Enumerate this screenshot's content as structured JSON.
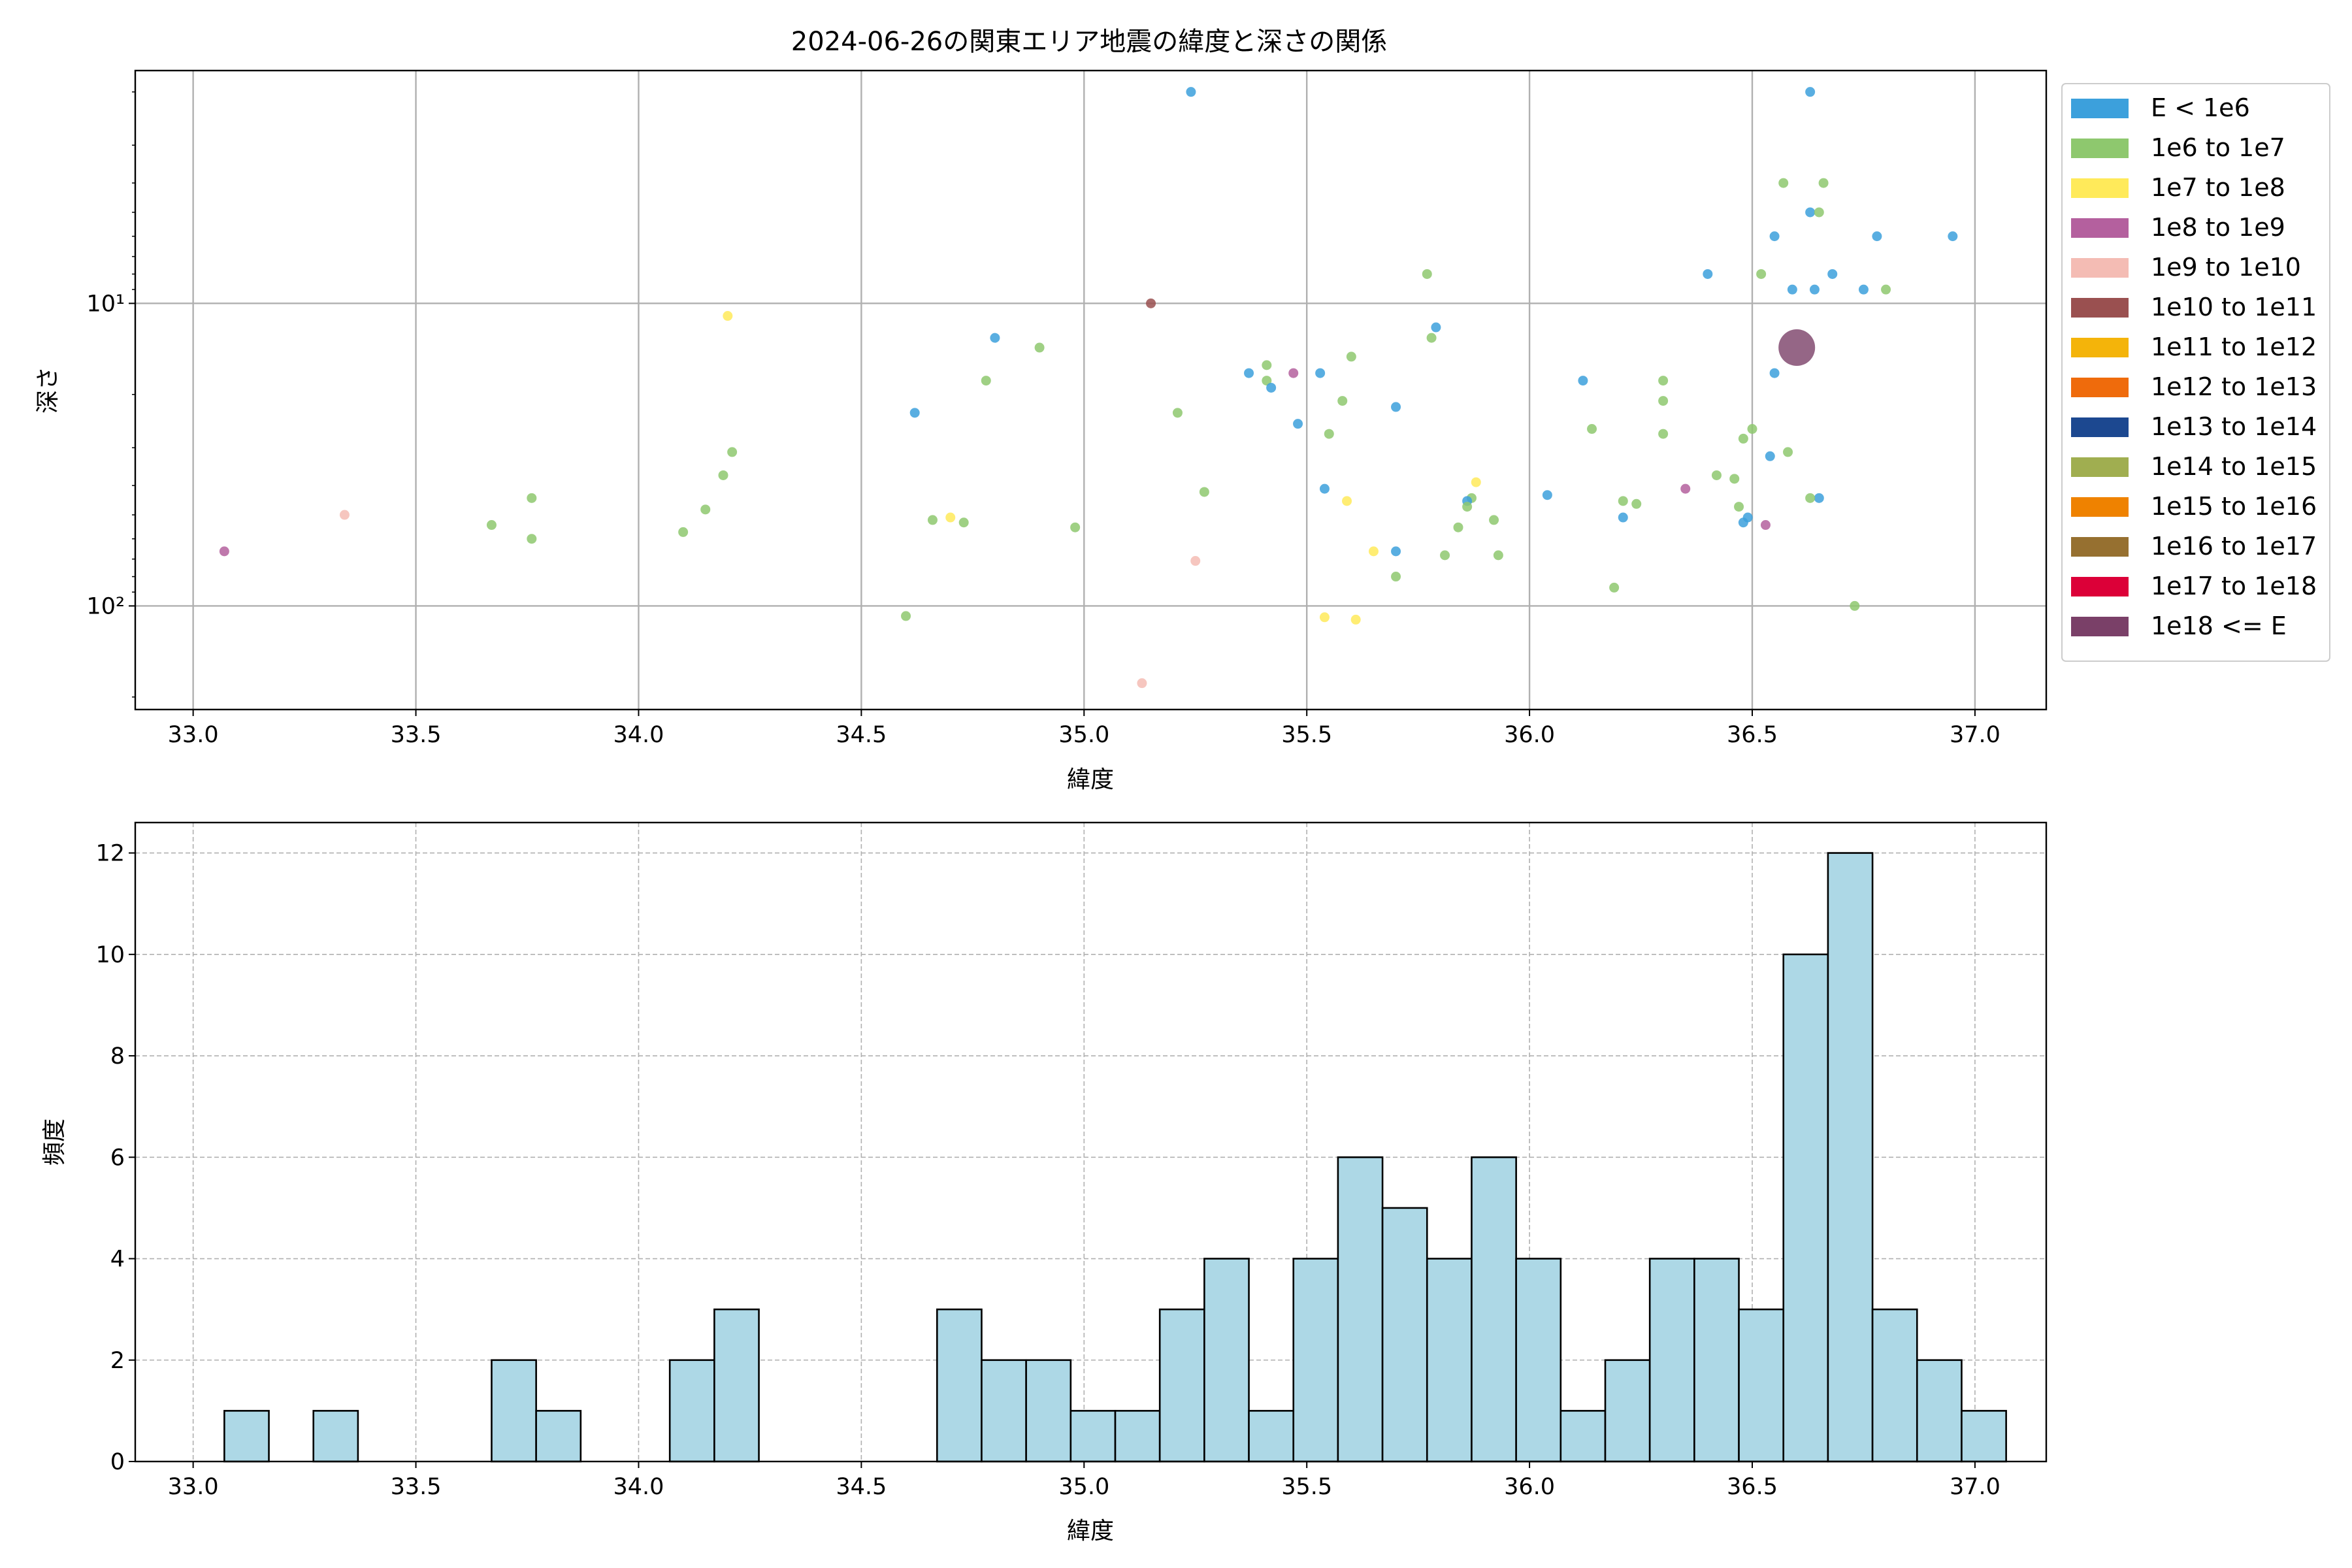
{
  "colors": {
    "grid": "#b0b0b0",
    "bar_fill": "#add8e6",
    "bar_edge": "#000000",
    "point_colors": [
      "#3ca0dc",
      "#8ec86e",
      "#ffea5a",
      "#b4609e",
      "#f4bcb4",
      "#9a5050",
      "#f4b40a",
      "#ef6b0c",
      "#1c4890",
      "#a0ae50",
      "#ef8200",
      "#967030",
      "#dc0038",
      "#7a4068"
    ]
  },
  "chart_data": [
    {
      "type": "scatter",
      "title": "2024-06-26の関東エリア地震の緯度と深さの関係",
      "xlabel": "緯度",
      "ylabel": "深さ",
      "xlim": [
        32.87,
        37.16
      ],
      "ylim": [
        220,
        1.7
      ],
      "y_scale": "log",
      "y_inverted": true,
      "grid": true,
      "x_ticks": [
        "33.0",
        "33.5",
        "34.0",
        "34.5",
        "35.0",
        "35.5",
        "36.0",
        "36.5",
        "37.0"
      ],
      "x_tick_values": [
        33.0,
        33.5,
        34.0,
        34.5,
        35.0,
        35.5,
        36.0,
        36.5,
        37.0
      ],
      "y_ticks": [
        "10¹",
        "10²"
      ],
      "y_tick_values": [
        10,
        100
      ],
      "y_minor_ticks": [
        2,
        3,
        4,
        5,
        6,
        7,
        8,
        9,
        20,
        30,
        40,
        50,
        60,
        70,
        80,
        90,
        200
      ],
      "legend_position": "outside-right",
      "legend": [
        {
          "label": "E < 1e6",
          "color": "#3ca0dc"
        },
        {
          "label": "1e6 to 1e7",
          "color": "#8ec86e"
        },
        {
          "label": "1e7 to 1e8",
          "color": "#ffea5a"
        },
        {
          "label": "1e8 to 1e9",
          "color": "#b4609e"
        },
        {
          "label": "1e9 to 1e10",
          "color": "#f4bcb4"
        },
        {
          "label": "1e10 to 1e11",
          "color": "#9a5050"
        },
        {
          "label": "1e11 to 1e12",
          "color": "#f4b40a"
        },
        {
          "label": "1e12 to 1e13",
          "color": "#ef6b0c"
        },
        {
          "label": "1e13 to 1e14",
          "color": "#1c4890"
        },
        {
          "label": "1e14 to 1e15",
          "color": "#a0ae50"
        },
        {
          "label": "1e15 to 1e16",
          "color": "#ef8200"
        },
        {
          "label": "1e16 to 1e17",
          "color": "#967030"
        },
        {
          "label": "1e17 to 1e18",
          "color": "#dc0038"
        },
        {
          "label": "1e18 <= E",
          "color": "#7a4068"
        }
      ],
      "points": [
        {
          "x": 35.24,
          "y": 2,
          "c": 0,
          "s": 1
        },
        {
          "x": 36.63,
          "y": 2,
          "c": 0,
          "s": 1
        },
        {
          "x": 36.57,
          "y": 4,
          "c": 1,
          "s": 1
        },
        {
          "x": 36.66,
          "y": 4,
          "c": 1,
          "s": 1
        },
        {
          "x": 36.63,
          "y": 5,
          "c": 0,
          "s": 1
        },
        {
          "x": 36.65,
          "y": 5,
          "c": 1,
          "s": 1
        },
        {
          "x": 36.55,
          "y": 6,
          "c": 0,
          "s": 1
        },
        {
          "x": 36.78,
          "y": 6,
          "c": 0,
          "s": 1
        },
        {
          "x": 36.95,
          "y": 6,
          "c": 0,
          "s": 1
        },
        {
          "x": 36.4,
          "y": 8,
          "c": 0,
          "s": 1
        },
        {
          "x": 36.52,
          "y": 8,
          "c": 1,
          "s": 1
        },
        {
          "x": 35.77,
          "y": 8,
          "c": 1,
          "s": 1
        },
        {
          "x": 36.68,
          "y": 8,
          "c": 0,
          "s": 1
        },
        {
          "x": 36.59,
          "y": 9,
          "c": 0,
          "s": 1
        },
        {
          "x": 36.64,
          "y": 9,
          "c": 0,
          "s": 1
        },
        {
          "x": 36.75,
          "y": 9,
          "c": 0,
          "s": 1
        },
        {
          "x": 36.8,
          "y": 9,
          "c": 1,
          "s": 1
        },
        {
          "x": 35.15,
          "y": 10,
          "c": 5,
          "s": 1
        },
        {
          "x": 34.2,
          "y": 11,
          "c": 2,
          "s": 1
        },
        {
          "x": 35.79,
          "y": 12,
          "c": 0,
          "s": 1
        },
        {
          "x": 35.78,
          "y": 13,
          "c": 1,
          "s": 1
        },
        {
          "x": 34.8,
          "y": 13,
          "c": 0,
          "s": 1
        },
        {
          "x": 34.9,
          "y": 14,
          "c": 1,
          "s": 1
        },
        {
          "x": 36.6,
          "y": 14,
          "c": 13,
          "s": 3
        },
        {
          "x": 35.6,
          "y": 15,
          "c": 1,
          "s": 1
        },
        {
          "x": 35.41,
          "y": 16,
          "c": 1,
          "s": 1
        },
        {
          "x": 35.37,
          "y": 17,
          "c": 0,
          "s": 1
        },
        {
          "x": 35.47,
          "y": 17,
          "c": 3,
          "s": 1
        },
        {
          "x": 35.53,
          "y": 17,
          "c": 0,
          "s": 1
        },
        {
          "x": 36.55,
          "y": 17,
          "c": 0,
          "s": 1
        },
        {
          "x": 35.41,
          "y": 18,
          "c": 1,
          "s": 1
        },
        {
          "x": 36.12,
          "y": 18,
          "c": 0,
          "s": 1
        },
        {
          "x": 36.3,
          "y": 18,
          "c": 1,
          "s": 1
        },
        {
          "x": 34.78,
          "y": 18,
          "c": 1,
          "s": 1
        },
        {
          "x": 35.42,
          "y": 19,
          "c": 0,
          "s": 1
        },
        {
          "x": 35.58,
          "y": 21,
          "c": 1,
          "s": 1
        },
        {
          "x": 36.3,
          "y": 21,
          "c": 1,
          "s": 1
        },
        {
          "x": 35.7,
          "y": 22,
          "c": 0,
          "s": 1
        },
        {
          "x": 34.62,
          "y": 23,
          "c": 0,
          "s": 1
        },
        {
          "x": 35.21,
          "y": 23,
          "c": 1,
          "s": 1
        },
        {
          "x": 35.48,
          "y": 25,
          "c": 0,
          "s": 1
        },
        {
          "x": 36.14,
          "y": 26,
          "c": 1,
          "s": 1
        },
        {
          "x": 36.5,
          "y": 26,
          "c": 1,
          "s": 1
        },
        {
          "x": 35.55,
          "y": 27,
          "c": 1,
          "s": 1
        },
        {
          "x": 36.3,
          "y": 27,
          "c": 1,
          "s": 1
        },
        {
          "x": 36.48,
          "y": 28,
          "c": 1,
          "s": 1
        },
        {
          "x": 34.21,
          "y": 31,
          "c": 1,
          "s": 1
        },
        {
          "x": 36.58,
          "y": 31,
          "c": 1,
          "s": 1
        },
        {
          "x": 36.54,
          "y": 32,
          "c": 0,
          "s": 1
        },
        {
          "x": 34.19,
          "y": 37,
          "c": 1,
          "s": 1
        },
        {
          "x": 36.42,
          "y": 37,
          "c": 1,
          "s": 1
        },
        {
          "x": 36.46,
          "y": 38,
          "c": 1,
          "s": 1
        },
        {
          "x": 35.88,
          "y": 39,
          "c": 2,
          "s": 1
        },
        {
          "x": 35.54,
          "y": 41,
          "c": 0,
          "s": 1
        },
        {
          "x": 35.27,
          "y": 42,
          "c": 1,
          "s": 1
        },
        {
          "x": 36.35,
          "y": 41,
          "c": 3,
          "s": 1
        },
        {
          "x": 33.76,
          "y": 44,
          "c": 1,
          "s": 1
        },
        {
          "x": 36.04,
          "y": 43,
          "c": 0,
          "s": 1
        },
        {
          "x": 35.87,
          "y": 44,
          "c": 1,
          "s": 1
        },
        {
          "x": 36.65,
          "y": 44,
          "c": 0,
          "s": 1
        },
        {
          "x": 36.63,
          "y": 44,
          "c": 1,
          "s": 1
        },
        {
          "x": 35.59,
          "y": 45,
          "c": 2,
          "s": 1
        },
        {
          "x": 35.86,
          "y": 45,
          "c": 0,
          "s": 1
        },
        {
          "x": 36.21,
          "y": 45,
          "c": 1,
          "s": 1
        },
        {
          "x": 36.24,
          "y": 46,
          "c": 1,
          "s": 1
        },
        {
          "x": 35.86,
          "y": 47,
          "c": 1,
          "s": 1
        },
        {
          "x": 36.47,
          "y": 47,
          "c": 1,
          "s": 1
        },
        {
          "x": 34.15,
          "y": 48,
          "c": 1,
          "s": 1
        },
        {
          "x": 33.34,
          "y": 50,
          "c": 4,
          "s": 1
        },
        {
          "x": 36.21,
          "y": 51,
          "c": 0,
          "s": 1
        },
        {
          "x": 34.7,
          "y": 51,
          "c": 2,
          "s": 1
        },
        {
          "x": 34.66,
          "y": 52,
          "c": 1,
          "s": 1
        },
        {
          "x": 34.73,
          "y": 53,
          "c": 1,
          "s": 1
        },
        {
          "x": 36.49,
          "y": 51,
          "c": 0,
          "s": 1
        },
        {
          "x": 35.92,
          "y": 52,
          "c": 1,
          "s": 1
        },
        {
          "x": 36.48,
          "y": 53,
          "c": 0,
          "s": 1
        },
        {
          "x": 33.67,
          "y": 54,
          "c": 1,
          "s": 1
        },
        {
          "x": 36.53,
          "y": 54,
          "c": 3,
          "s": 1
        },
        {
          "x": 35.84,
          "y": 55,
          "c": 1,
          "s": 1
        },
        {
          "x": 34.98,
          "y": 55,
          "c": 1,
          "s": 1
        },
        {
          "x": 34.1,
          "y": 57,
          "c": 1,
          "s": 1
        },
        {
          "x": 33.76,
          "y": 60,
          "c": 1,
          "s": 1
        },
        {
          "x": 33.07,
          "y": 66,
          "c": 3,
          "s": 1
        },
        {
          "x": 35.65,
          "y": 66,
          "c": 2,
          "s": 1
        },
        {
          "x": 35.7,
          "y": 66,
          "c": 0,
          "s": 1
        },
        {
          "x": 35.81,
          "y": 68,
          "c": 1,
          "s": 1
        },
        {
          "x": 35.93,
          "y": 68,
          "c": 1,
          "s": 1
        },
        {
          "x": 35.25,
          "y": 71,
          "c": 4,
          "s": 1
        },
        {
          "x": 35.7,
          "y": 80,
          "c": 1,
          "s": 1
        },
        {
          "x": 36.19,
          "y": 87,
          "c": 1,
          "s": 1
        },
        {
          "x": 36.73,
          "y": 100,
          "c": 1,
          "s": 1
        },
        {
          "x": 34.6,
          "y": 108,
          "c": 1,
          "s": 1
        },
        {
          "x": 35.54,
          "y": 109,
          "c": 2,
          "s": 1
        },
        {
          "x": 35.61,
          "y": 111,
          "c": 2,
          "s": 1
        },
        {
          "x": 35.13,
          "y": 180,
          "c": 4,
          "s": 1
        }
      ]
    },
    {
      "type": "bar",
      "xlabel": "緯度",
      "ylabel": "頻度",
      "xlim": [
        32.87,
        37.16
      ],
      "ylim": [
        0,
        12.6
      ],
      "grid": true,
      "x_ticks": [
        "33.0",
        "33.5",
        "34.0",
        "34.5",
        "35.0",
        "35.5",
        "36.0",
        "36.5",
        "37.0"
      ],
      "x_tick_values": [
        33.0,
        33.5,
        34.0,
        34.5,
        35.0,
        35.5,
        36.0,
        36.5,
        37.0
      ],
      "y_ticks": [
        "0",
        "2",
        "4",
        "6",
        "8",
        "10",
        "12"
      ],
      "y_tick_values": [
        0,
        2,
        4,
        6,
        8,
        10,
        12
      ],
      "bin_start": 33.07,
      "bin_width": 0.1,
      "values": [
        1,
        0,
        1,
        0,
        0,
        0,
        2,
        1,
        0,
        0,
        2,
        3,
        0,
        0,
        0,
        0,
        3,
        2,
        2,
        1,
        1,
        3,
        4,
        1,
        4,
        6,
        5,
        4,
        6,
        4,
        1,
        2,
        4,
        4,
        3,
        10,
        12,
        3,
        2,
        1
      ]
    }
  ]
}
